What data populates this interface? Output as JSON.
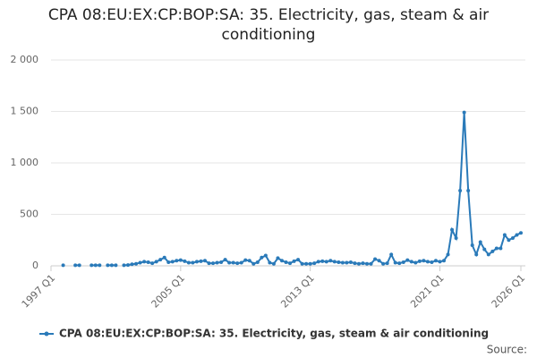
{
  "chart_data": {
    "type": "line",
    "title": "CPA 08:EU:EX:CP:BOP:SA: 35. Electricity, gas, steam & air conditioning",
    "categories": [
      "1997 Q1",
      null,
      null,
      null,
      null,
      null,
      null,
      null,
      null,
      null,
      null,
      null,
      null,
      null,
      null,
      null,
      null,
      null,
      null,
      null,
      null,
      null,
      null,
      null,
      null,
      null,
      null,
      null,
      null,
      null,
      null,
      null,
      "2005 Q1",
      null,
      null,
      null,
      null,
      null,
      null,
      null,
      null,
      null,
      null,
      null,
      null,
      null,
      null,
      null,
      null,
      null,
      null,
      null,
      null,
      null,
      null,
      null,
      null,
      null,
      null,
      null,
      null,
      null,
      null,
      null,
      "2013 Q1",
      null,
      null,
      null,
      null,
      null,
      null,
      null,
      null,
      null,
      null,
      null,
      null,
      null,
      null,
      null,
      null,
      null,
      null,
      null,
      null,
      null,
      null,
      null,
      null,
      null,
      null,
      null,
      null,
      null,
      null,
      null,
      "2021 Q1",
      null,
      null,
      null,
      null,
      null,
      null,
      null,
      null,
      null,
      null,
      null,
      null,
      null,
      null,
      null,
      null,
      null,
      null,
      null,
      "2026 Q1"
    ],
    "series": [
      {
        "name": "CPA 08:EU:EX:CP:BOP:SA: 35. Electricity, gas, steam & air conditioning",
        "color": "#2a7ab9",
        "values": [
          null,
          null,
          null,
          5,
          null,
          null,
          5,
          5,
          null,
          null,
          5,
          5,
          5,
          null,
          5,
          5,
          5,
          null,
          5,
          8,
          15,
          20,
          30,
          40,
          35,
          25,
          40,
          60,
          80,
          35,
          40,
          50,
          55,
          45,
          30,
          30,
          40,
          45,
          50,
          25,
          25,
          30,
          35,
          60,
          30,
          30,
          25,
          30,
          55,
          50,
          20,
          35,
          80,
          100,
          30,
          20,
          75,
          50,
          35,
          25,
          45,
          60,
          20,
          20,
          20,
          25,
          40,
          45,
          40,
          50,
          40,
          35,
          30,
          30,
          35,
          25,
          20,
          25,
          20,
          20,
          65,
          50,
          20,
          25,
          110,
          30,
          25,
          35,
          55,
          40,
          30,
          45,
          50,
          40,
          35,
          50,
          40,
          50,
          110,
          350,
          270,
          730,
          1490,
          730,
          200,
          110,
          230,
          160,
          110,
          140,
          170,
          170,
          300,
          250,
          270,
          300,
          320
        ]
      }
    ],
    "ylim": [
      0,
      2000
    ],
    "yticks": [
      0,
      500,
      {
        "value": 1000,
        "label": "1 000"
      },
      {
        "value": 1500,
        "label": "1 500"
      },
      {
        "value": 2000,
        "label": "2 000"
      }
    ],
    "grid": true,
    "source": "Source:"
  }
}
